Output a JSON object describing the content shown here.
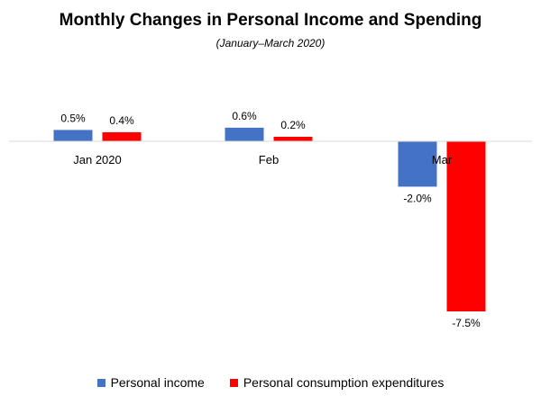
{
  "chart_data": {
    "type": "bar",
    "title": "Monthly Changes in Personal Income and Spending",
    "subtitle": "(January–March 2020)",
    "categories": [
      "Jan 2020",
      "Feb",
      "Mar"
    ],
    "series": [
      {
        "name": "Personal income",
        "color": "#4472C4",
        "values": [
          0.5,
          0.6,
          -2.0
        ],
        "labels": [
          "0.5%",
          "0.6%",
          "-2.0%"
        ]
      },
      {
        "name": "Personal consumption expenditures",
        "color": "#FF0000",
        "values": [
          0.4,
          0.2,
          -7.5
        ],
        "labels": [
          "0.4%",
          "0.2%",
          "-7.5%"
        ]
      }
    ],
    "ylim": [
      -8,
      1
    ],
    "xlabel": "",
    "ylabel": "",
    "grid": false,
    "legend_position": "bottom"
  }
}
